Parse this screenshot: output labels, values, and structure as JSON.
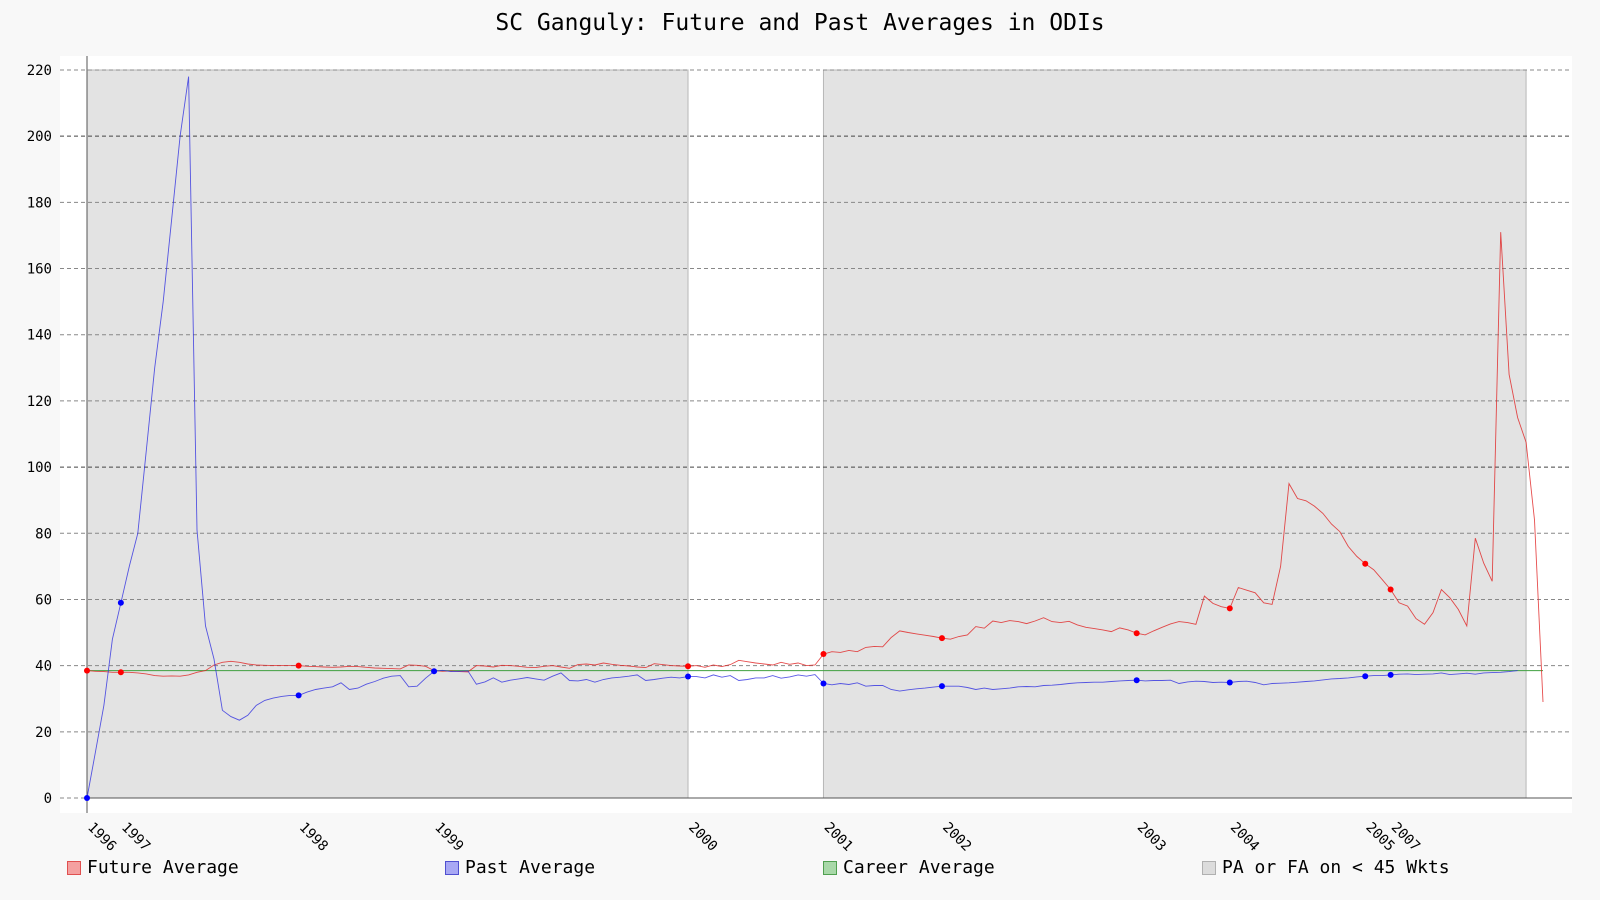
{
  "chart_data": {
    "type": "line",
    "title": "SC Ganguly: Future and Past Averages in ODIs",
    "xlabel": "",
    "ylabel": "",
    "ylim": [
      0,
      220
    ],
    "yticks": [
      0,
      20,
      40,
      60,
      80,
      100,
      120,
      140,
      160,
      180,
      200,
      220
    ],
    "grid": true,
    "legend_position": "bottom",
    "x_tick_labels": [
      {
        "label": "1996",
        "x": 0
      },
      {
        "label": "1997",
        "x": 4
      },
      {
        "label": "1998",
        "x": 25
      },
      {
        "label": "1999",
        "x": 41
      },
      {
        "label": "2000",
        "x": 71
      },
      {
        "label": "2001",
        "x": 87
      },
      {
        "label": "2002",
        "x": 101
      },
      {
        "label": "2003",
        "x": 124
      },
      {
        "label": "2004",
        "x": 135
      },
      {
        "label": "2005",
        "x": 151
      },
      {
        "label": "2007",
        "x": 154
      }
    ],
    "shaded_regions": [
      {
        "x0": 0,
        "x1": 71,
        "y0": 0,
        "y1": 220
      },
      {
        "x0": 87,
        "x1": 170,
        "y0": 0,
        "y1": 220
      }
    ],
    "career_average": 38.5,
    "series": [
      {
        "name": "Future Average",
        "color": "#e02020",
        "values": [
          38.5,
          38.3,
          38.2,
          38,
          38,
          38,
          37.8,
          37.5,
          37,
          36.8,
          36.9,
          36.8,
          37.2,
          38,
          38.5,
          40.2,
          41,
          41.3,
          41,
          40.5,
          40.2,
          40.1,
          40,
          40,
          40,
          40,
          39.8,
          39.7,
          39.6,
          39.5,
          39.6,
          39.8,
          39.7,
          39.5,
          39.3,
          39.2,
          39.1,
          39,
          40.2,
          40.1,
          39.8,
          38.5,
          38.3,
          38.4,
          38.2,
          38.1,
          40,
          39.9,
          39.6,
          40.1,
          40,
          39.8,
          39.5,
          39.4,
          39.8,
          40,
          39.6,
          39.2,
          40.3,
          40.5,
          40.2,
          40.8,
          40.4,
          40.1,
          39.9,
          39.6,
          39.4,
          40.6,
          40.3,
          40,
          39.9,
          39.8,
          40,
          39.5,
          40.2,
          39.7,
          40.3,
          41.6,
          41.2,
          40.8,
          40.5,
          40.2,
          41,
          40.4,
          40.8,
          40,
          40.2,
          43.5,
          44.2,
          44,
          44.6,
          44.2,
          45.5,
          45.8,
          45.7,
          48.5,
          50.5,
          50,
          49.6,
          49.2,
          48.8,
          48.3,
          48,
          48.8,
          49.3,
          51.8,
          51.3,
          53.5,
          53,
          53.6,
          53.3,
          52.7,
          53.5,
          54.5,
          53.3,
          53,
          53.4,
          52.3,
          51.6,
          51.2,
          50.8,
          50.3,
          51.4,
          50.8,
          49.8,
          49.3,
          50.5,
          51.6,
          52.6,
          53.3,
          53,
          52.5,
          61,
          58.8,
          57.8,
          57.3,
          63.6,
          62.8,
          62,
          59,
          58.5,
          70,
          95,
          90.5,
          89.8,
          88.2,
          86,
          82.8,
          80.5,
          76,
          73,
          70.8,
          69,
          66,
          63,
          59,
          58,
          54.2,
          52.5,
          56,
          63,
          60.5,
          57,
          52,
          78.5,
          71,
          65.5,
          171,
          128,
          115,
          107.5,
          84,
          29
        ]
      },
      {
        "name": "Past Average",
        "color": "#3030e0",
        "values": [
          0,
          14,
          28,
          48,
          59,
          70,
          80,
          105,
          130,
          150,
          175,
          200,
          218,
          81,
          52,
          42,
          26.5,
          24.6,
          23.5,
          25,
          28,
          29.5,
          30.2,
          30.7,
          31,
          31,
          32,
          32.8,
          33.2,
          33.6,
          34.8,
          32.8,
          33.2,
          34.4,
          35.2,
          36.2,
          36.8,
          37,
          33.6,
          33.8,
          36.2,
          38.3,
          38.6,
          38.2,
          38.3,
          38.4,
          34.4,
          35.1,
          36.3,
          35,
          35.6,
          36,
          36.4,
          36,
          35.6,
          36.8,
          37.8,
          35.5,
          35.4,
          35.8,
          35,
          35.8,
          36.3,
          36.5,
          36.8,
          37.2,
          35.5,
          35.8,
          36.2,
          36.5,
          36.3,
          36.7,
          36.7,
          36.3,
          37.2,
          36.5,
          37,
          35.5,
          35.8,
          36.3,
          36.3,
          37,
          36.2,
          36.6,
          37.2,
          36.8,
          37.3,
          34.6,
          34.2,
          34.6,
          34.3,
          34.8,
          33.8,
          34,
          34,
          32.8,
          32.3,
          32.7,
          33,
          33.2,
          33.5,
          33.8,
          33.8,
          33.8,
          33.4,
          32.8,
          33.2,
          32.8,
          33,
          33.2,
          33.6,
          33.7,
          33.6,
          34,
          34.1,
          34.3,
          34.6,
          34.8,
          34.9,
          35,
          35,
          35.2,
          35.4,
          35.5,
          35.6,
          35.4,
          35.5,
          35.5,
          35.6,
          34.6,
          35.1,
          35.3,
          35.2,
          34.9,
          35,
          34.9,
          35.2,
          35.3,
          34.9,
          34.2,
          34.6,
          34.7,
          34.8,
          35,
          35.2,
          35.4,
          35.7,
          36,
          36.1,
          36.3,
          36.6,
          36.8,
          37,
          37,
          37.2,
          37.4,
          37.5,
          37.3,
          37.4,
          37.5,
          37.8,
          37.3,
          37.5,
          37.7,
          37.4,
          37.8,
          37.9,
          38,
          38.2,
          38.5
        ]
      },
      {
        "name": "Career Average",
        "color": "#40a040",
        "values": [
          38.5,
          38.5
        ]
      }
    ],
    "markers": {
      "future_indices": [
        0,
        4,
        25,
        71,
        87,
        101,
        124,
        135,
        151,
        154
      ],
      "past_indices": [
        0,
        4,
        25,
        41,
        71,
        87,
        101,
        124,
        135,
        151,
        154
      ]
    },
    "legend": [
      {
        "label": "Future Average",
        "swatch": "#f4a0a0",
        "border": "#e05050"
      },
      {
        "label": "Past Average",
        "swatch": "#a8a8f4",
        "border": "#5050d0"
      },
      {
        "label": "Career Average",
        "swatch": "#a8d8a8",
        "border": "#50a050"
      },
      {
        "label": "PA or FA on < 45 Wkts",
        "swatch": "#dcdcdc",
        "border": "#b0b0b0"
      }
    ]
  }
}
